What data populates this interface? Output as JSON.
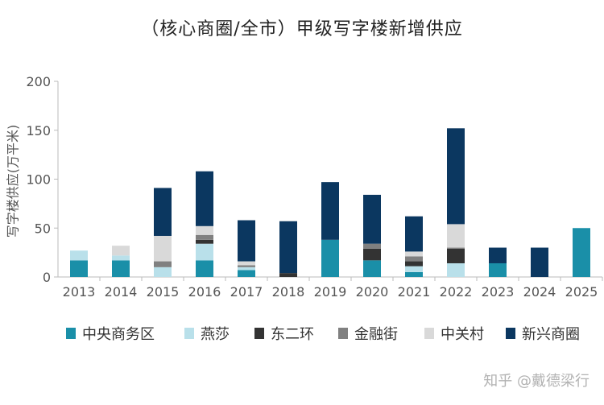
{
  "chart_data": {
    "type": "bar",
    "stacked": true,
    "title": "（核心商圈/全市）甲级写字楼新增供应",
    "ylabel": "写字楼供应(万平米)",
    "xlabel": "",
    "ylim": [
      0,
      200
    ],
    "yticks": [
      0,
      50,
      100,
      150,
      200
    ],
    "grid": false,
    "legend_position": "bottom",
    "categories": [
      "2013",
      "2014",
      "2015",
      "2016",
      "2017",
      "2018",
      "2019",
      "2020",
      "2021",
      "2022",
      "2023",
      "2024",
      "2025"
    ],
    "series": [
      {
        "name": "中央商务区",
        "color": "#1a8fa8",
        "values": [
          17,
          17,
          0,
          17,
          7,
          0,
          38,
          17,
          5,
          0,
          14,
          0,
          50
        ]
      },
      {
        "name": "燕莎",
        "color": "#b9e0ea",
        "values": [
          10,
          5,
          10,
          17,
          3,
          0,
          0,
          0,
          6,
          14,
          0,
          0,
          0
        ]
      },
      {
        "name": "东二环",
        "color": "#333333",
        "values": [
          0,
          0,
          0,
          4,
          0,
          4,
          0,
          12,
          5,
          15,
          0,
          0,
          0
        ]
      },
      {
        "name": "金融街",
        "color": "#808080",
        "values": [
          0,
          0,
          6,
          5,
          2,
          0,
          0,
          5,
          5,
          1,
          0,
          0,
          0
        ]
      },
      {
        "name": "中关村",
        "color": "#d9d9d9",
        "values": [
          0,
          10,
          26,
          9,
          4,
          0,
          0,
          0,
          5,
          24,
          0,
          0,
          0
        ]
      },
      {
        "name": "新兴商圈",
        "color": "#0b3760",
        "values": [
          0,
          0,
          49,
          56,
          42,
          53,
          59,
          50,
          36,
          98,
          16,
          30,
          0
        ]
      }
    ]
  },
  "watermark": "知乎 @戴德梁行"
}
